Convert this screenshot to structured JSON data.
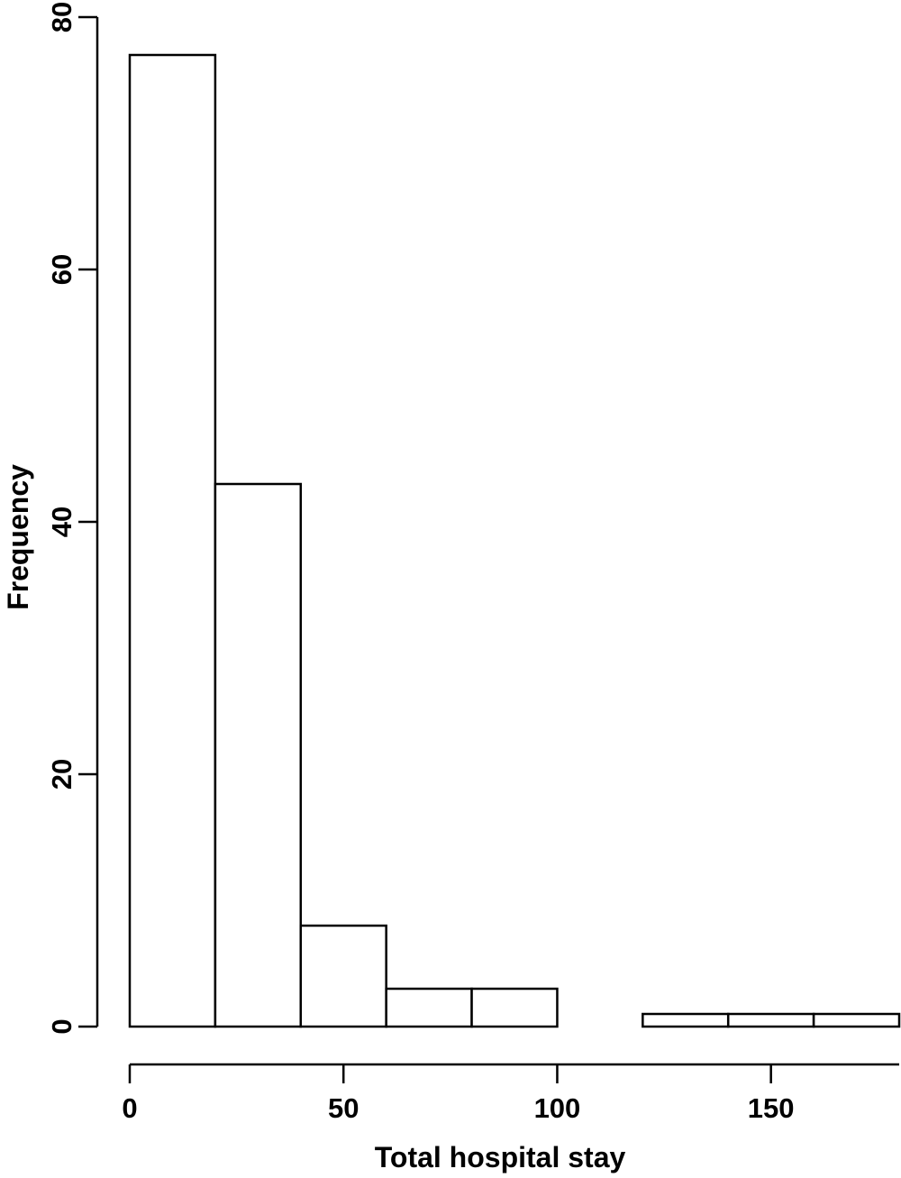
{
  "chart_data": {
    "type": "bar",
    "title": "",
    "xlabel": "Total hospital stay",
    "ylabel": "Frequency",
    "bins": [
      {
        "start": 0,
        "end": 20,
        "count": 77
      },
      {
        "start": 20,
        "end": 40,
        "count": 43
      },
      {
        "start": 40,
        "end": 60,
        "count": 8
      },
      {
        "start": 60,
        "end": 80,
        "count": 3
      },
      {
        "start": 80,
        "end": 100,
        "count": 3
      },
      {
        "start": 100,
        "end": 120,
        "count": 0
      },
      {
        "start": 120,
        "end": 140,
        "count": 1
      },
      {
        "start": 140,
        "end": 160,
        "count": 1
      },
      {
        "start": 160,
        "end": 180,
        "count": 1
      }
    ],
    "xlim": [
      0,
      180
    ],
    "ylim": [
      0,
      80
    ],
    "xticks": [
      "0",
      "50",
      "100",
      "150"
    ],
    "yticks": [
      "0",
      "20",
      "40",
      "60",
      "80"
    ],
    "grid": false,
    "legend": "none",
    "colors": {
      "bar_fill": "#ffffff",
      "bar_stroke": "#000000",
      "axis": "#000000"
    }
  }
}
